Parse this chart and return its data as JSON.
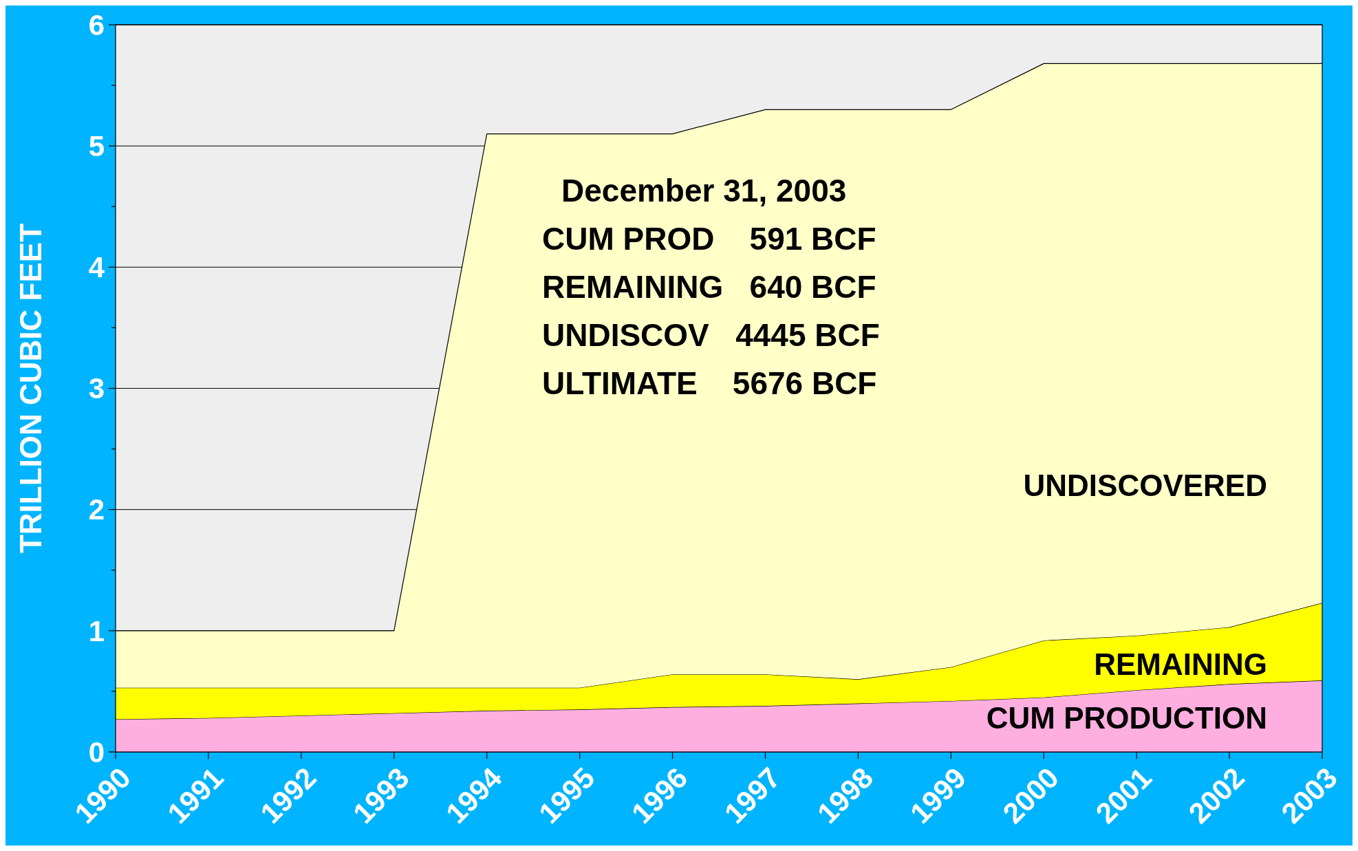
{
  "chart_data": {
    "type": "area",
    "stacked": true,
    "ylabel": "TRILLION CUBIC FEET",
    "categories": [
      "1990",
      "1991",
      "1992",
      "1993",
      "1994",
      "1995",
      "1996",
      "1997",
      "1998",
      "1999",
      "2000",
      "2001",
      "2002",
      "2003"
    ],
    "series": [
      {
        "name": "CUM PRODUCTION",
        "color": "#ffaee0",
        "values": [
          0.27,
          0.28,
          0.3,
          0.32,
          0.34,
          0.35,
          0.37,
          0.38,
          0.4,
          0.42,
          0.45,
          0.51,
          0.56,
          0.59
        ]
      },
      {
        "name": "REMAINING",
        "color": "#ffff00",
        "values": [
          0.26,
          0.25,
          0.23,
          0.21,
          0.19,
          0.18,
          0.27,
          0.26,
          0.2,
          0.28,
          0.47,
          0.45,
          0.47,
          0.64
        ]
      },
      {
        "name": "UNDISCOVERED",
        "color": "#ffffc8",
        "values": [
          0.47,
          0.47,
          0.47,
          0.47,
          4.57,
          4.57,
          4.46,
          4.66,
          4.7,
          4.6,
          4.76,
          4.72,
          4.65,
          4.45
        ]
      }
    ],
    "ylim": [
      0,
      6
    ],
    "yticks": [
      0,
      {
        "value": 0.5,
        "label": null
      },
      1,
      {
        "value": 1.5,
        "label": null
      },
      2,
      {
        "value": 2.5,
        "label": null
      },
      3,
      {
        "value": 3.5,
        "label": null
      },
      4,
      {
        "value": 4.5,
        "label": null
      },
      5,
      {
        "value": 5.5,
        "label": null
      },
      6
    ],
    "grid": "y",
    "legend": false,
    "annotations": [
      "December 31, 2003",
      "CUM PROD    591 BCF",
      "REMAINING   640 BCF",
      "UNDISCOV   4445 BCF",
      "ULTIMATE    5676 BCF"
    ]
  }
}
